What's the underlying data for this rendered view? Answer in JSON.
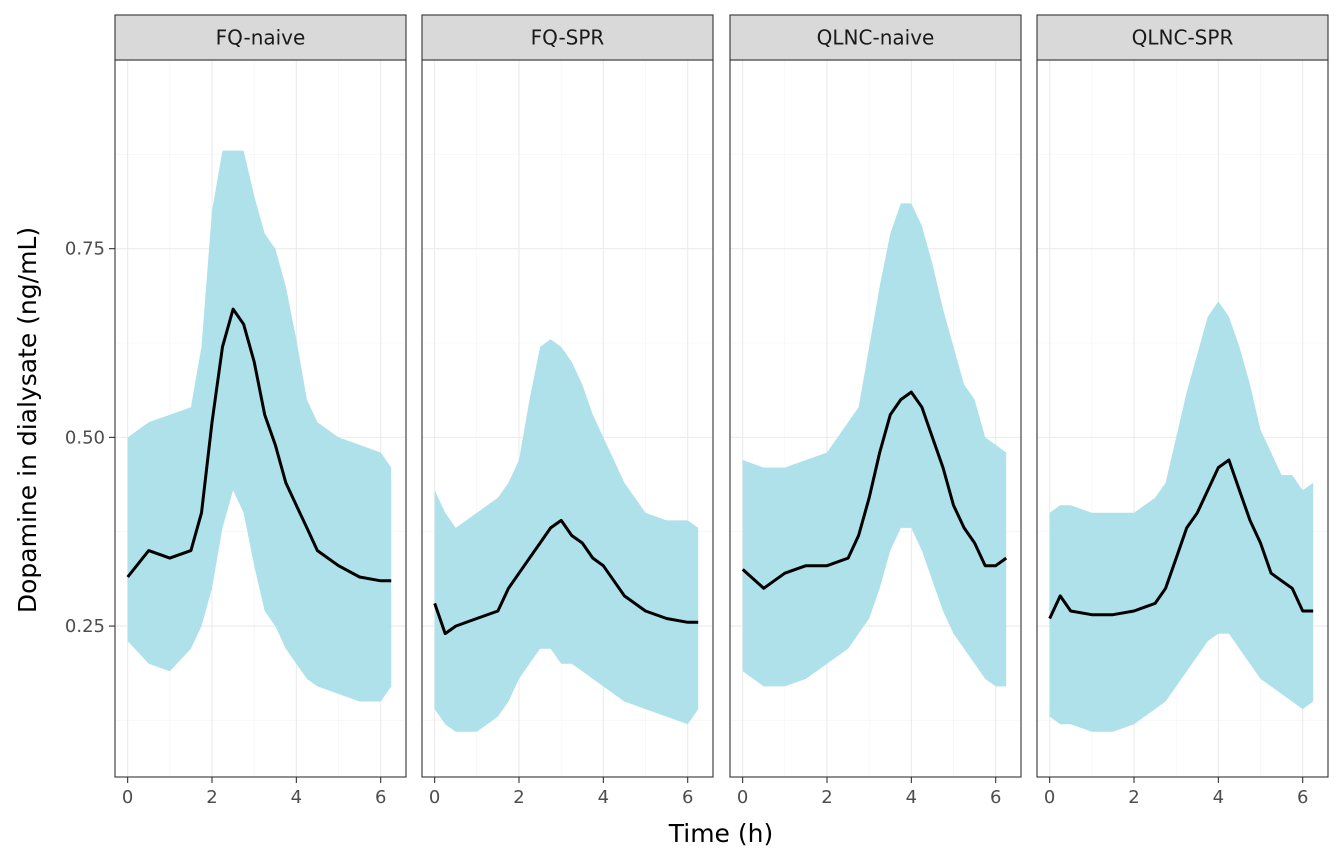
{
  "chart_data": {
    "type": "line",
    "xlabel": "Time (h)",
    "ylabel": "Dopamine in dialysate (ng/mL)",
    "xlim": [
      -0.3,
      6.6
    ],
    "ylim": [
      0.05,
      1.0
    ],
    "x_ticks": [
      0,
      2,
      4,
      6
    ],
    "x_tick_labels": [
      "0",
      "2",
      "4",
      "6"
    ],
    "y_ticks": [
      0.25,
      0.5,
      0.75
    ],
    "y_tick_labels": [
      "0.25",
      "0.50",
      "0.75"
    ],
    "grid": true,
    "ribbon_color": "#aee1ea",
    "line_color": "#000000",
    "panels": [
      {
        "label": "FQ-naive",
        "points": [
          [
            0.0,
            0.315,
            0.23,
            0.5
          ],
          [
            0.5,
            0.35,
            0.2,
            0.52
          ],
          [
            1.0,
            0.34,
            0.19,
            0.53
          ],
          [
            1.5,
            0.35,
            0.22,
            0.54
          ],
          [
            1.75,
            0.4,
            0.25,
            0.62
          ],
          [
            2.0,
            0.52,
            0.3,
            0.8
          ],
          [
            2.25,
            0.62,
            0.38,
            0.88
          ],
          [
            2.5,
            0.67,
            0.43,
            0.88
          ],
          [
            2.75,
            0.65,
            0.4,
            0.88
          ],
          [
            3.0,
            0.6,
            0.33,
            0.82
          ],
          [
            3.25,
            0.53,
            0.27,
            0.77
          ],
          [
            3.5,
            0.49,
            0.25,
            0.75
          ],
          [
            3.75,
            0.44,
            0.22,
            0.7
          ],
          [
            4.0,
            0.41,
            0.2,
            0.63
          ],
          [
            4.25,
            0.38,
            0.18,
            0.55
          ],
          [
            4.5,
            0.35,
            0.17,
            0.52
          ],
          [
            5.0,
            0.33,
            0.16,
            0.5
          ],
          [
            5.5,
            0.315,
            0.15,
            0.49
          ],
          [
            6.0,
            0.31,
            0.15,
            0.48
          ],
          [
            6.25,
            0.31,
            0.17,
            0.46
          ]
        ]
      },
      {
        "label": "FQ-SPR",
        "points": [
          [
            0.0,
            0.28,
            0.14,
            0.43
          ],
          [
            0.25,
            0.24,
            0.12,
            0.4
          ],
          [
            0.5,
            0.25,
            0.11,
            0.38
          ],
          [
            1.0,
            0.26,
            0.11,
            0.4
          ],
          [
            1.5,
            0.27,
            0.13,
            0.42
          ],
          [
            1.75,
            0.3,
            0.15,
            0.44
          ],
          [
            2.0,
            0.32,
            0.18,
            0.47
          ],
          [
            2.25,
            0.34,
            0.2,
            0.55
          ],
          [
            2.5,
            0.36,
            0.22,
            0.62
          ],
          [
            2.75,
            0.38,
            0.22,
            0.63
          ],
          [
            3.0,
            0.39,
            0.2,
            0.62
          ],
          [
            3.25,
            0.37,
            0.2,
            0.6
          ],
          [
            3.5,
            0.36,
            0.19,
            0.57
          ],
          [
            3.75,
            0.34,
            0.18,
            0.53
          ],
          [
            4.0,
            0.33,
            0.17,
            0.5
          ],
          [
            4.25,
            0.31,
            0.16,
            0.47
          ],
          [
            4.5,
            0.29,
            0.15,
            0.44
          ],
          [
            5.0,
            0.27,
            0.14,
            0.4
          ],
          [
            5.5,
            0.26,
            0.13,
            0.39
          ],
          [
            6.0,
            0.255,
            0.12,
            0.39
          ],
          [
            6.25,
            0.255,
            0.14,
            0.38
          ]
        ]
      },
      {
        "label": "QLNC-naive",
        "points": [
          [
            0.0,
            0.325,
            0.19,
            0.47
          ],
          [
            0.5,
            0.3,
            0.17,
            0.46
          ],
          [
            1.0,
            0.32,
            0.17,
            0.46
          ],
          [
            1.5,
            0.33,
            0.18,
            0.47
          ],
          [
            2.0,
            0.33,
            0.2,
            0.48
          ],
          [
            2.5,
            0.34,
            0.22,
            0.52
          ],
          [
            2.75,
            0.37,
            0.24,
            0.54
          ],
          [
            3.0,
            0.42,
            0.26,
            0.62
          ],
          [
            3.25,
            0.48,
            0.3,
            0.7
          ],
          [
            3.5,
            0.53,
            0.35,
            0.77
          ],
          [
            3.75,
            0.55,
            0.38,
            0.81
          ],
          [
            4.0,
            0.56,
            0.38,
            0.81
          ],
          [
            4.25,
            0.54,
            0.35,
            0.78
          ],
          [
            4.5,
            0.5,
            0.31,
            0.73
          ],
          [
            4.75,
            0.46,
            0.27,
            0.67
          ],
          [
            5.0,
            0.41,
            0.24,
            0.62
          ],
          [
            5.25,
            0.38,
            0.22,
            0.57
          ],
          [
            5.5,
            0.36,
            0.2,
            0.55
          ],
          [
            5.75,
            0.33,
            0.18,
            0.5
          ],
          [
            6.0,
            0.33,
            0.17,
            0.49
          ],
          [
            6.25,
            0.34,
            0.17,
            0.48
          ]
        ]
      },
      {
        "label": "QLNC-SPR",
        "points": [
          [
            0.0,
            0.26,
            0.13,
            0.4
          ],
          [
            0.25,
            0.29,
            0.12,
            0.41
          ],
          [
            0.5,
            0.27,
            0.12,
            0.41
          ],
          [
            1.0,
            0.265,
            0.11,
            0.4
          ],
          [
            1.5,
            0.265,
            0.11,
            0.4
          ],
          [
            2.0,
            0.27,
            0.12,
            0.4
          ],
          [
            2.5,
            0.28,
            0.14,
            0.42
          ],
          [
            2.75,
            0.3,
            0.15,
            0.44
          ],
          [
            3.0,
            0.34,
            0.17,
            0.5
          ],
          [
            3.25,
            0.38,
            0.19,
            0.56
          ],
          [
            3.5,
            0.4,
            0.21,
            0.61
          ],
          [
            3.75,
            0.43,
            0.23,
            0.66
          ],
          [
            4.0,
            0.46,
            0.24,
            0.68
          ],
          [
            4.25,
            0.47,
            0.24,
            0.66
          ],
          [
            4.5,
            0.43,
            0.22,
            0.62
          ],
          [
            4.75,
            0.39,
            0.2,
            0.57
          ],
          [
            5.0,
            0.36,
            0.18,
            0.51
          ],
          [
            5.25,
            0.32,
            0.17,
            0.48
          ],
          [
            5.5,
            0.31,
            0.16,
            0.45
          ],
          [
            5.75,
            0.3,
            0.15,
            0.45
          ],
          [
            6.0,
            0.27,
            0.14,
            0.43
          ],
          [
            6.25,
            0.27,
            0.15,
            0.44
          ]
        ]
      }
    ]
  }
}
